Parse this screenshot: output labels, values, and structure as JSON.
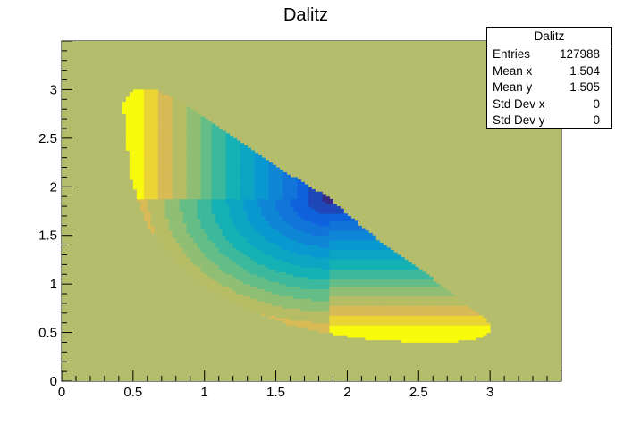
{
  "chart_data": {
    "type": "heatmap",
    "title": "Dalitz",
    "xlabel": "",
    "ylabel": "",
    "xlim": [
      0,
      3.5
    ],
    "ylim": [
      0,
      3.5
    ],
    "x_ticks": [
      "0",
      "0.5",
      "1",
      "1.5",
      "2",
      "2.5",
      "3"
    ],
    "y_ticks": [
      "0",
      "0.5",
      "1",
      "1.5",
      "2",
      "2.5",
      "3"
    ],
    "palette": "kBird",
    "background_color": "#b3bd6b",
    "grid": false,
    "legend": "none",
    "region_boundary": {
      "upper": [
        [
          0.43,
          2.85
        ],
        [
          0.5,
          3.0
        ],
        [
          0.65,
          3.0
        ],
        [
          0.8,
          2.9
        ],
        [
          1.0,
          2.7
        ],
        [
          1.3,
          2.4
        ],
        [
          1.6,
          2.12
        ],
        [
          1.8,
          1.95
        ],
        [
          1.88,
          1.88
        ],
        [
          2.0,
          1.72
        ],
        [
          2.3,
          1.35
        ],
        [
          2.6,
          1.05
        ],
        [
          2.8,
          0.82
        ],
        [
          2.95,
          0.66
        ],
        [
          3.02,
          0.55
        ]
      ],
      "lower": [
        [
          3.02,
          0.55
        ],
        [
          2.95,
          0.45
        ],
        [
          2.7,
          0.4
        ],
        [
          2.4,
          0.41
        ],
        [
          2.1,
          0.44
        ],
        [
          1.88,
          0.49
        ],
        [
          1.6,
          0.58
        ],
        [
          1.3,
          0.75
        ],
        [
          1.0,
          0.98
        ],
        [
          0.8,
          1.25
        ],
        [
          0.6,
          1.6
        ],
        [
          0.48,
          2.1
        ],
        [
          0.43,
          2.5
        ],
        [
          0.43,
          2.85
        ]
      ]
    },
    "fold_point": [
      1.88,
      1.88
    ],
    "max_density_point": [
      1.88,
      1.88
    ],
    "stats_box": {
      "title": "Dalitz",
      "rows": [
        {
          "label": "Entries",
          "value": "127988"
        },
        {
          "label": "Mean x",
          "value": "1.504"
        },
        {
          "label": "Mean y",
          "value": "1.505"
        },
        {
          "label": "Std Dev x",
          "value": "0"
        },
        {
          "label": "Std Dev y",
          "value": "0"
        }
      ]
    }
  }
}
